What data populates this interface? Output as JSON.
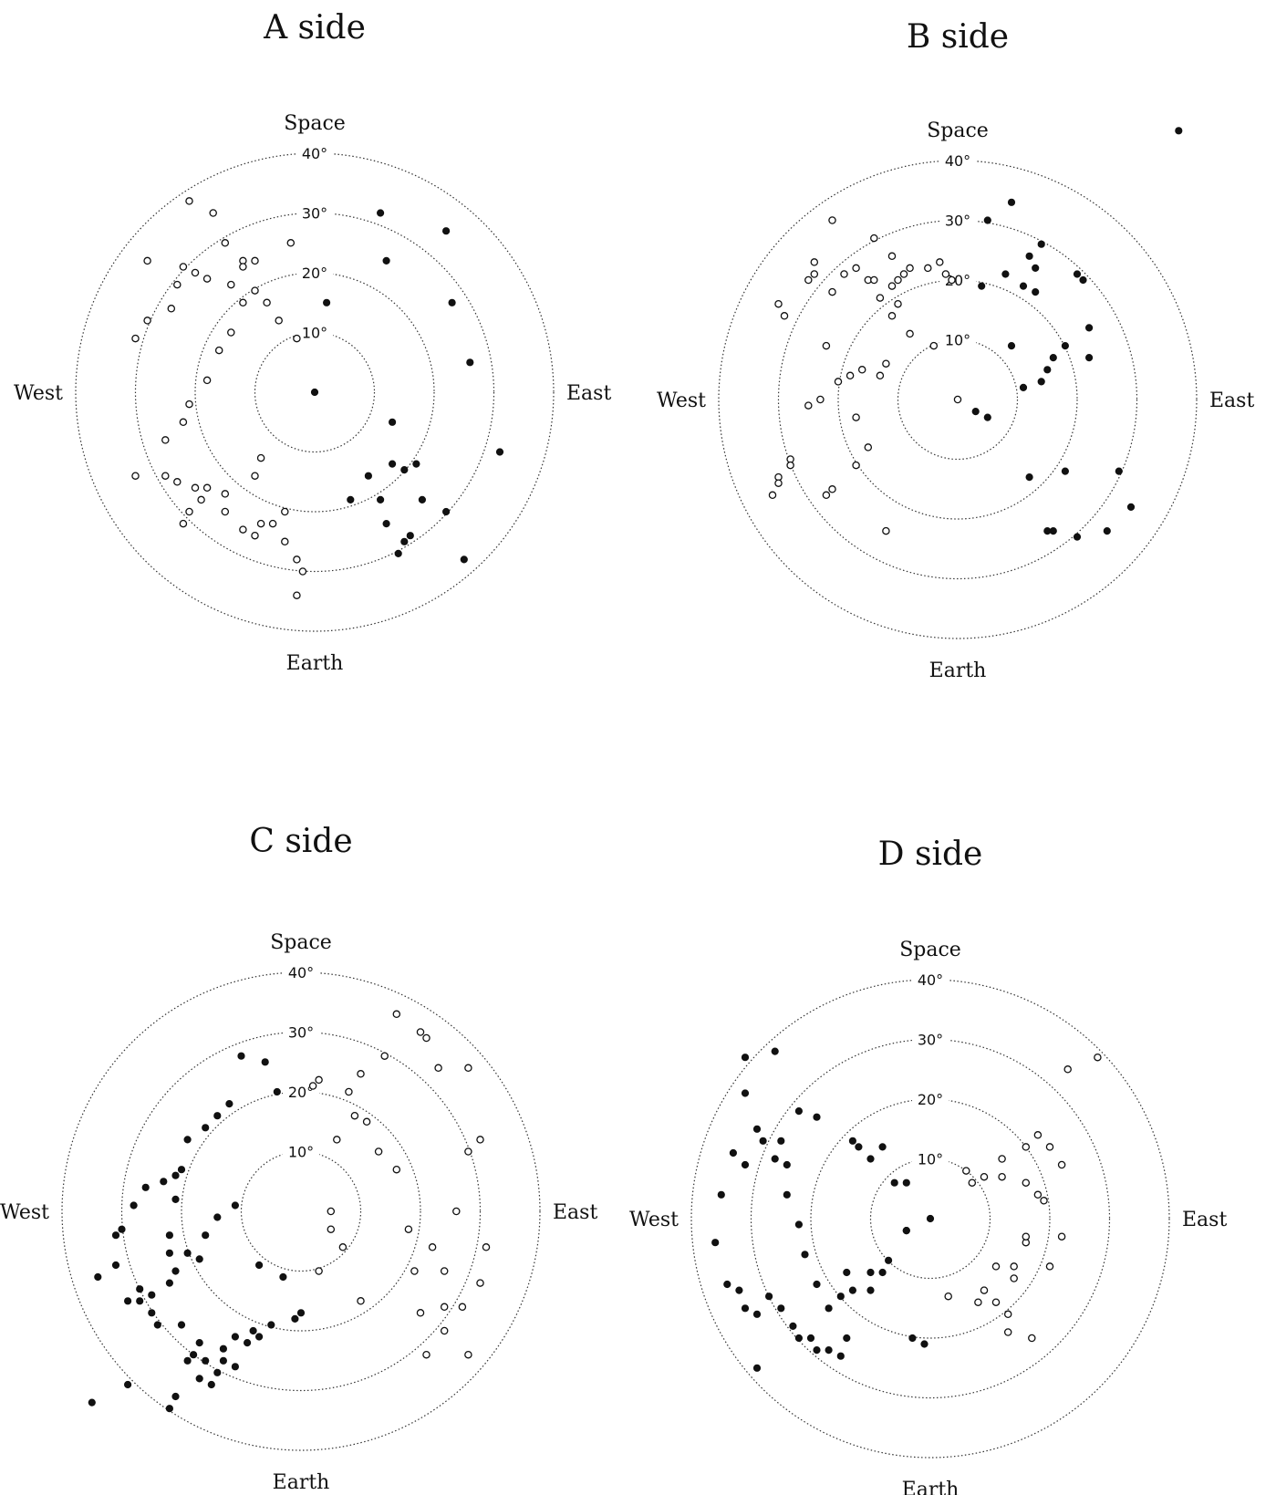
{
  "chart_data": [
    {
      "type": "scatter",
      "title": "A side",
      "projection": "polar",
      "radial_unit": "deg",
      "rings": [
        10,
        20,
        30,
        40
      ],
      "ring_labels": [
        "10°",
        "20°",
        "30°",
        "40°"
      ],
      "directions": {
        "top": "Space",
        "bottom": "Earth",
        "left": "West",
        "right": "East"
      },
      "series": [
        {
          "marker": "filled",
          "x": [
            0,
            2,
            12,
            11,
            22,
            23,
            26,
            31,
            13,
            13,
            17,
            15,
            9,
            6,
            11,
            12,
            18,
            22,
            16,
            15,
            14,
            25
          ],
          "y": [
            0,
            15,
            22,
            30,
            27,
            15,
            5,
            -10,
            -5,
            -12,
            -12,
            -13,
            -14,
            -18,
            -18,
            -22,
            -18,
            -20,
            -24,
            -25,
            -27,
            -28
          ]
        },
        {
          "marker": "open",
          "x": [
            -28,
            -21,
            -17,
            -15,
            -22,
            -23,
            -24,
            -28,
            -30,
            -20,
            -18,
            -14,
            -12,
            -10,
            -12,
            -8,
            -6,
            -3,
            -4,
            -10,
            -12,
            -14,
            -16,
            -18,
            -21,
            -22,
            -25,
            -30,
            -25,
            -20,
            -18,
            -15,
            -15,
            -12,
            -10,
            -9,
            -7,
            -9,
            -10,
            -21,
            -22,
            -5,
            -5,
            -3,
            -2,
            -3,
            -19,
            -23
          ],
          "y": [
            22,
            32,
            30,
            25,
            21,
            18,
            14,
            12,
            9,
            20,
            19,
            18,
            22,
            22,
            21,
            15,
            12,
            9,
            25,
            17,
            15,
            10,
            7,
            2,
            -2,
            -5,
            -8,
            -14,
            -14,
            -16,
            -16,
            -17,
            -20,
            -23,
            -24,
            -22,
            -22,
            -11,
            -14,
            -20,
            -22,
            -20,
            -25,
            -28,
            -30,
            -34,
            -18,
            -15
          ]
        }
      ]
    },
    {
      "type": "scatter",
      "title": "B side",
      "projection": "polar",
      "radial_unit": "deg",
      "rings": [
        10,
        20,
        30,
        40
      ],
      "ring_labels": [
        "10°",
        "20°",
        "30°",
        "40°"
      ],
      "directions": {
        "top": "Space",
        "bottom": "Earth",
        "left": "West",
        "right": "East"
      },
      "series": [
        {
          "marker": "filled",
          "x": [
            9,
            5,
            8,
            11,
            13,
            13,
            14,
            12,
            20,
            21,
            22,
            22,
            18,
            16,
            15,
            14,
            11,
            9,
            5,
            3,
            12,
            15,
            16,
            20,
            18,
            25,
            27,
            29,
            4,
            37
          ],
          "y": [
            33,
            30,
            21,
            19,
            18,
            22,
            26,
            24,
            21,
            20,
            12,
            7,
            9,
            7,
            5,
            3,
            2,
            9,
            -3,
            -2,
            -13,
            -22,
            -22,
            -23,
            -12,
            -22,
            -12,
            -18,
            19,
            45
          ],
          "note": ""
        },
        {
          "marker": "open",
          "x": [
            -29,
            -24,
            -21,
            -19,
            -17,
            -15,
            -14,
            -13,
            -11,
            -10,
            -8,
            -5,
            -3,
            -2,
            -1,
            0,
            -4,
            -8,
            -10,
            -11,
            -12,
            -13,
            -16,
            -18,
            -20,
            -22,
            -25,
            -28,
            -30,
            -31,
            -30,
            -23,
            -17,
            -15,
            -17,
            -21,
            -22,
            -28,
            -30,
            -25,
            -24,
            -21,
            -14,
            -11,
            -9,
            -12
          ],
          "y": [
            14,
            23,
            18,
            21,
            22,
            20,
            20,
            17,
            19,
            20,
            22,
            22,
            23,
            21,
            20,
            0,
            9,
            11,
            16,
            14,
            6,
            4,
            5,
            4,
            3,
            9,
            -1,
            -10,
            -13,
            -16,
            16,
            0,
            -3,
            -8,
            -11,
            -15,
            -16,
            -11,
            -14,
            20,
            21,
            30,
            27,
            24,
            21,
            -22
          ]
        }
      ]
    },
    {
      "type": "scatter",
      "title": "C side",
      "projection": "polar",
      "radial_unit": "deg",
      "rings": [
        10,
        20,
        30,
        40
      ],
      "ring_labels": [
        "10°",
        "20°",
        "30°",
        "40°"
      ],
      "directions": {
        "top": "Space",
        "bottom": "Earth",
        "left": "West",
        "right": "East"
      },
      "series": [
        {
          "marker": "filled",
          "x": [
            -3,
            0,
            -1,
            -7,
            -11,
            -14,
            -13,
            -15,
            -16,
            -18,
            -20,
            -21,
            -22,
            -21,
            -20,
            -22,
            -25,
            -27,
            -29,
            -31,
            -34,
            -31,
            -30,
            -28,
            -26,
            -23,
            -21,
            -19,
            -16,
            -14,
            -12,
            -10,
            -6,
            -4,
            -8,
            -9,
            -11,
            -13,
            -17,
            -19,
            -21,
            -22,
            -24,
            -25,
            -27,
            -35,
            -29,
            -17,
            -22,
            -19,
            -16,
            -14,
            -11,
            -7,
            -5,
            -17
          ],
          "y": [
            -11,
            -17,
            -18,
            -21,
            -26,
            -27,
            -25,
            -29,
            -25,
            -24,
            -19,
            -10,
            -4,
            2,
            7,
            -12,
            -14,
            -15,
            -15,
            -9,
            -11,
            -4,
            -3,
            1,
            4,
            5,
            6,
            12,
            14,
            16,
            18,
            26,
            25,
            20,
            -20,
            -22,
            -21,
            -23,
            -28,
            -25,
            -31,
            -33,
            -19,
            -17,
            -13,
            -32,
            -29,
            -8,
            -7,
            -7,
            -4,
            -1,
            1,
            -9,
            -19,
            -22
          ]
        },
        {
          "marker": "open",
          "x": [
            2,
            3,
            8,
            11,
            13,
            16,
            18,
            22,
            24,
            21,
            24,
            28,
            27,
            30,
            31,
            28,
            28,
            30,
            21,
            20,
            16,
            14,
            10,
            9,
            6,
            5,
            5,
            7,
            3,
            10,
            20,
            24,
            19,
            26,
            23
          ],
          "y": [
            21,
            22,
            20,
            15,
            10,
            7,
            -3,
            -6,
            -10,
            -24,
            -20,
            -24,
            -16,
            -12,
            -6,
            10,
            24,
            12,
            29,
            30,
            33,
            26,
            23,
            16,
            12,
            0,
            -3,
            -6,
            -10,
            -15,
            -17,
            -16,
            -10,
            0,
            24
          ]
        }
      ]
    },
    {
      "type": "scatter",
      "title": "D side",
      "projection": "polar",
      "radial_unit": "deg",
      "rings": [
        10,
        20,
        30,
        40
      ],
      "ring_labels": [
        "10°",
        "20°",
        "30°",
        "40°"
      ],
      "directions": {
        "top": "Space",
        "bottom": "Earth",
        "left": "West",
        "right": "East"
      },
      "series": [
        {
          "marker": "filled",
          "x": [
            0,
            -4,
            -4,
            -7,
            -8,
            -10,
            -10,
            -13,
            -14,
            -15,
            -17,
            -19,
            -21,
            -22,
            -24,
            -24,
            -25,
            -26,
            -28,
            -29,
            -31,
            -33,
            -35,
            -36,
            -34,
            -32,
            -31,
            -29,
            -27,
            -25,
            -23,
            -22,
            -20,
            -19,
            -17,
            -15,
            -14,
            -13,
            -12,
            -10,
            -8,
            -6,
            -4,
            -3,
            -1,
            -26,
            -31,
            -22,
            -19,
            -31,
            -29
          ],
          "y": [
            0,
            -2,
            -2,
            -7,
            -9,
            -9,
            -12,
            -12,
            -9,
            -13,
            -15,
            -11,
            -6,
            -1,
            4,
            9,
            13,
            10,
            13,
            15,
            9,
            11,
            4,
            -4,
            -11,
            -12,
            -15,
            -16,
            -13,
            -15,
            -18,
            -20,
            -20,
            -22,
            -22,
            -23,
            -20,
            13,
            12,
            10,
            12,
            6,
            6,
            -20,
            -21,
            28,
            27,
            18,
            17,
            21,
            -25
          ]
        },
        {
          "marker": "open",
          "x": [
            3,
            8,
            11,
            14,
            16,
            20,
            22,
            19,
            16,
            12,
            6,
            7,
            9,
            12,
            16,
            18,
            22,
            20,
            18,
            16,
            14,
            13,
            11,
            9,
            13,
            17,
            23,
            28
          ],
          "y": [
            -13,
            -14,
            -8,
            -8,
            -4,
            -8,
            -3,
            3,
            6,
            7,
            8,
            6,
            7,
            10,
            12,
            14,
            9,
            12,
            4,
            -3,
            -10,
            -16,
            -14,
            -12,
            -19,
            -20,
            25,
            27
          ]
        }
      ]
    }
  ]
}
